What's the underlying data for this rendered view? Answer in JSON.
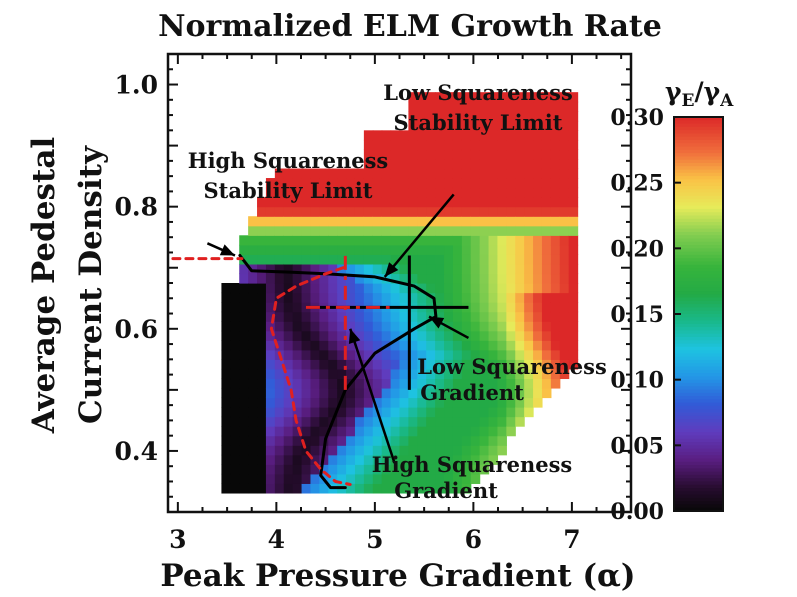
{
  "chart_data": {
    "type": "heatmap",
    "title": "Normalized ELM Growth Rate",
    "xlabel": "Peak Pressure Gradient (α)",
    "ylabel_line1": "Average Pedestal",
    "ylabel_line2": "Current  Density",
    "xlim": [
      2.9,
      7.6
    ],
    "ylim": [
      0.3,
      1.05
    ],
    "x_ticks": [
      "3",
      "4",
      "5",
      "6",
      "7"
    ],
    "x_tick_values": [
      3,
      4,
      5,
      6,
      7
    ],
    "y_ticks": [
      "0.4",
      "0.6",
      "0.8",
      "1.0"
    ],
    "y_tick_values": [
      0.4,
      0.6,
      0.8,
      1.0
    ],
    "colorbar": {
      "label_main": "γ",
      "label_sub1": "E",
      "label_sep": "/γ",
      "label_sub2": "A",
      "range": [
        0.0,
        0.3
      ],
      "ticks": [
        "0.30",
        "0.25",
        "0.20",
        "0.15",
        "0.10",
        "0.05",
        "0.00"
      ],
      "tick_values": [
        0.3,
        0.25,
        0.2,
        0.15,
        0.1,
        0.05,
        0.0
      ]
    },
    "stability_limits": {
      "low_squareness": {
        "style": "solid",
        "color": "#000000",
        "points": [
          [
            3.63,
            0.72
          ],
          [
            3.75,
            0.695
          ],
          [
            4.1,
            0.693
          ],
          [
            4.5,
            0.69
          ],
          [
            5.0,
            0.685
          ],
          [
            5.4,
            0.67
          ],
          [
            5.6,
            0.65
          ],
          [
            5.62,
            0.62
          ],
          [
            5.4,
            0.6
          ],
          [
            5.0,
            0.56
          ],
          [
            4.7,
            0.5
          ],
          [
            4.5,
            0.42
          ],
          [
            4.45,
            0.36
          ],
          [
            4.55,
            0.34
          ],
          [
            4.7,
            0.34
          ]
        ]
      },
      "high_squareness": {
        "style": "dashed",
        "color": "#e02020",
        "points": [
          [
            4.68,
            0.7
          ],
          [
            4.5,
            0.69
          ],
          [
            4.2,
            0.67
          ],
          [
            4.0,
            0.65
          ],
          [
            3.95,
            0.6
          ],
          [
            4.05,
            0.55
          ],
          [
            4.15,
            0.5
          ],
          [
            4.2,
            0.45
          ],
          [
            4.3,
            0.4
          ],
          [
            4.45,
            0.37
          ],
          [
            4.6,
            0.35
          ],
          [
            4.75,
            0.345
          ]
        ]
      },
      "high_squareness_extension": {
        "style": "dashed",
        "color": "#e02020",
        "points": [
          [
            2.95,
            0.715
          ],
          [
            3.65,
            0.715
          ]
        ]
      }
    },
    "gradients": {
      "low_squareness": {
        "style": "solid",
        "color": "#000000",
        "x": 5.35,
        "y": 0.635,
        "x_range": [
          4.3,
          5.95
        ],
        "y_range": [
          0.5,
          0.72
        ]
      },
      "high_squareness": {
        "style": "dashed",
        "color": "#e02020",
        "x": 4.7,
        "y": 0.635,
        "x_range": [
          4.3,
          5.15
        ],
        "y_range": [
          0.5,
          0.72
        ]
      }
    },
    "annotations": {
      "low_sq_limit_1": "Low Squareness",
      "low_sq_limit_2": "Stability Limit",
      "high_sq_limit_1": "High Squareness",
      "high_sq_limit_2": "Stability Limit",
      "low_sq_grad_1": "Low Squareness",
      "low_sq_grad_2": "Gradient",
      "high_sq_grad_1": "High Squareness",
      "high_sq_grad_2": "Gradient"
    }
  }
}
